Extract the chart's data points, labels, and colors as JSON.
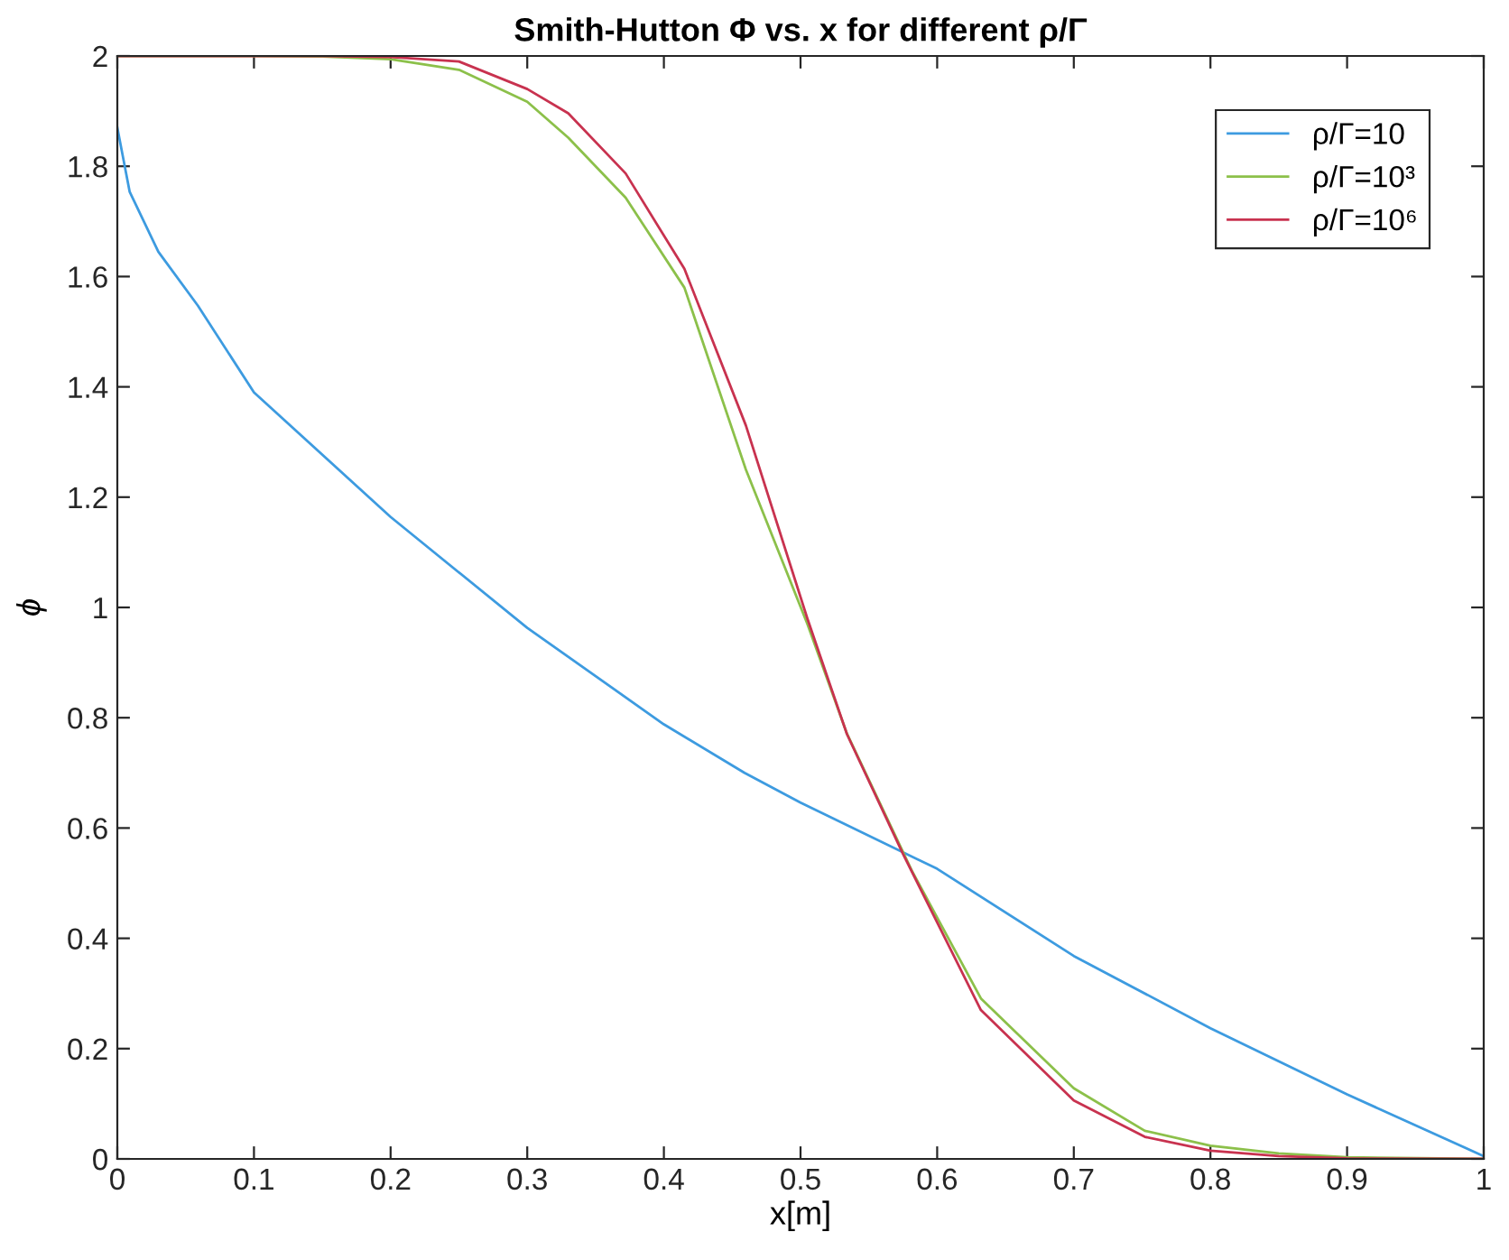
{
  "chart_data": {
    "type": "line",
    "title": "Smith-Hutton Φ vs. x for different ρ/Γ",
    "xlabel": "x[m]",
    "ylabel": "ϕ",
    "xlim": [
      0,
      1
    ],
    "ylim": [
      0,
      2
    ],
    "xticks": [
      0,
      0.1,
      0.2,
      0.3,
      0.4,
      0.5,
      0.6,
      0.7,
      0.8,
      0.9,
      1
    ],
    "yticks": [
      0,
      0.2,
      0.4,
      0.6,
      0.8,
      1,
      1.2,
      1.4,
      1.6,
      1.8,
      2
    ],
    "grid": false,
    "legend": "top right",
    "line_style": "solid",
    "marker": "none",
    "series": [
      {
        "name": "ρ/Γ=10",
        "color": "#3d9be0",
        "x": [
          0,
          0.009,
          0.03,
          0.059,
          0.1,
          0.2,
          0.3,
          0.4,
          0.459,
          0.5,
          0.6,
          0.7,
          0.8,
          0.9,
          1
        ],
        "values": [
          1.87,
          1.754,
          1.645,
          1.547,
          1.39,
          1.164,
          0.963,
          0.788,
          0.7,
          0.646,
          0.526,
          0.368,
          0.237,
          0.117,
          0.005
        ]
      },
      {
        "name": "ρ/Γ=10³",
        "color": "#8cc04a",
        "x": [
          0,
          0.1,
          0.15,
          0.2,
          0.25,
          0.3,
          0.33,
          0.372,
          0.415,
          0.46,
          0.505,
          0.534,
          0.582,
          0.632,
          0.7,
          0.752,
          0.8,
          0.85,
          0.9,
          1
        ],
        "values": [
          2,
          2,
          1.999,
          1.994,
          1.975,
          1.917,
          1.852,
          1.743,
          1.58,
          1.25,
          0.97,
          0.771,
          0.52,
          0.291,
          0.128,
          0.051,
          0.024,
          0.01,
          0.003,
          0
        ]
      },
      {
        "name": "ρ/Γ=10⁶",
        "color": "#c8324f",
        "x": [
          0,
          0.1,
          0.15,
          0.2,
          0.25,
          0.3,
          0.33,
          0.372,
          0.415,
          0.46,
          0.505,
          0.534,
          0.575,
          0.632,
          0.7,
          0.752,
          0.8,
          0.85,
          0.9,
          1
        ],
        "values": [
          2,
          2,
          2,
          1.998,
          1.99,
          1.94,
          1.896,
          1.787,
          1.614,
          1.33,
          0.98,
          0.77,
          0.553,
          0.27,
          0.106,
          0.04,
          0.015,
          0.005,
          0.001,
          0
        ]
      }
    ]
  }
}
